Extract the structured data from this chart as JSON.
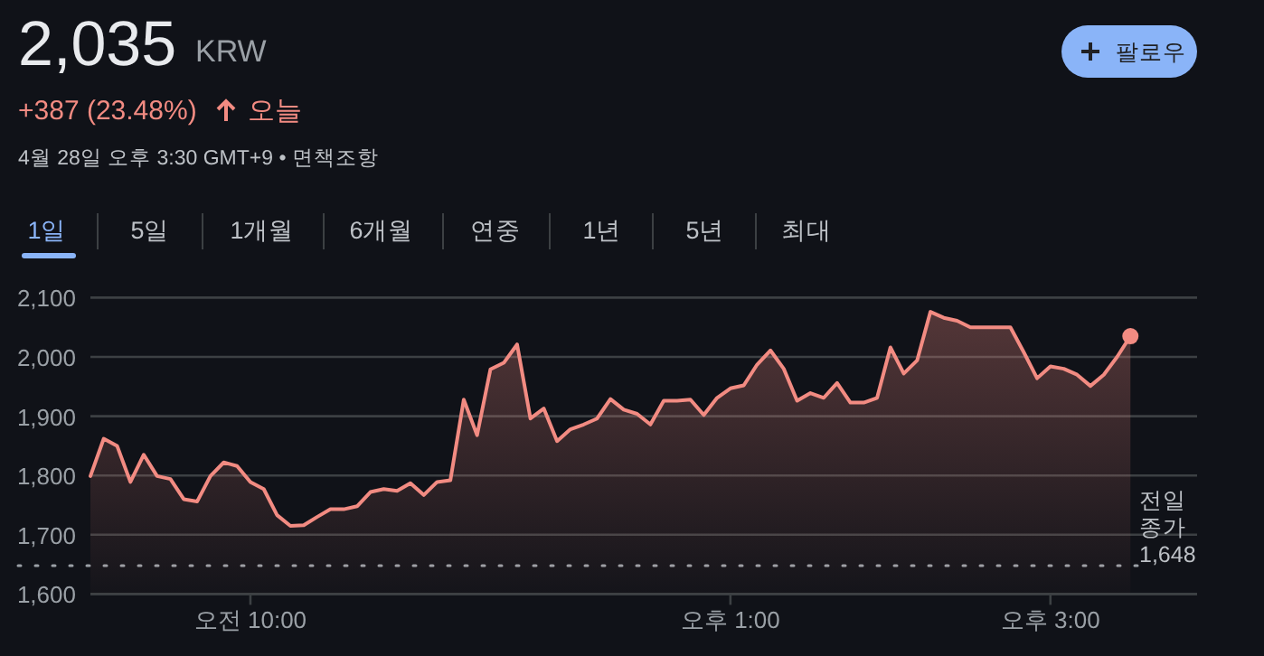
{
  "chart_data": {
    "type": "area",
    "title": "2,035",
    "subtitle": "KRW",
    "annotations": [
      "+387 (23.48%)",
      "오늘",
      "4월 28일 오후 3:30 GMT+9 • 면책조항",
      "팔로우",
      "1일",
      "5일",
      "1개월",
      "6개월",
      "연중",
      "1년",
      "5년",
      "최대"
    ],
    "categories": [
      null,
      null,
      null,
      null,
      null,
      null,
      null,
      null,
      null,
      null,
      null,
      null,
      "오전 10:00",
      null,
      null,
      null,
      null,
      null,
      null,
      null,
      null,
      null,
      null,
      null,
      null,
      null,
      null,
      null,
      null,
      null,
      null,
      null,
      null,
      null,
      null,
      null,
      null,
      null,
      null,
      null,
      null,
      null,
      null,
      null,
      null,
      null,
      null,
      null,
      "오후 1:00",
      null,
      null,
      null,
      null,
      null,
      null,
      null,
      null,
      null,
      null,
      null,
      null,
      null,
      null,
      null,
      null,
      null,
      null,
      null,
      null,
      null,
      null,
      null,
      "오후 3:00",
      null,
      null,
      null,
      null,
      null,
      null,
      null,
      null,
      null,
      null,
      null
    ],
    "series": [
      {
        "color": "#f28b82",
        "values": [
          1799,
          1862,
          1850,
          1789,
          1835,
          1799,
          1794,
          1760,
          1756,
          1799,
          1822,
          1816,
          1789,
          1777,
          1733,
          1715,
          1716,
          1730,
          1743,
          1743,
          1748,
          1772,
          1777,
          1774,
          1787,
          1767,
          1789,
          1792,
          1928,
          1868,
          1979,
          1990,
          2021,
          1896,
          1913,
          1858,
          1878,
          1886,
          1896,
          1929,
          1911,
          1904,
          1886,
          1926,
          1926,
          1928,
          1902,
          1931,
          1947,
          1952,
          1987,
          2011,
          1980,
          1926,
          1939,
          1931,
          1956,
          1923,
          1923,
          1931,
          2016,
          1972,
          1994,
          2076,
          2066,
          2061,
          2050,
          2050,
          2050,
          2050,
          2008,
          1964,
          1984,
          1980,
          1970,
          1951,
          1970,
          2000,
          2035,
          null,
          null,
          null,
          null,
          null
        ]
      }
    ],
    "ylim": [
      1600,
      2100
    ],
    "yticks": [
      {
        "value": 1600,
        "label": "1,600"
      },
      {
        "value": 1700,
        "label": "1,700"
      },
      {
        "value": 1800,
        "label": "1,800"
      },
      {
        "value": 1900,
        "label": "1,900"
      },
      {
        "value": 2000,
        "label": "2,000"
      },
      {
        "value": 2100,
        "label": "2,100"
      }
    ],
    "ref_lines": [
      {
        "axis": "y",
        "value": 1648,
        "label": "전일 종가 1,648",
        "color": "#9aa0a6",
        "line_style": "dotted"
      }
    ],
    "grid": "y",
    "marker": "none",
    "line_style": "solid"
  }
}
